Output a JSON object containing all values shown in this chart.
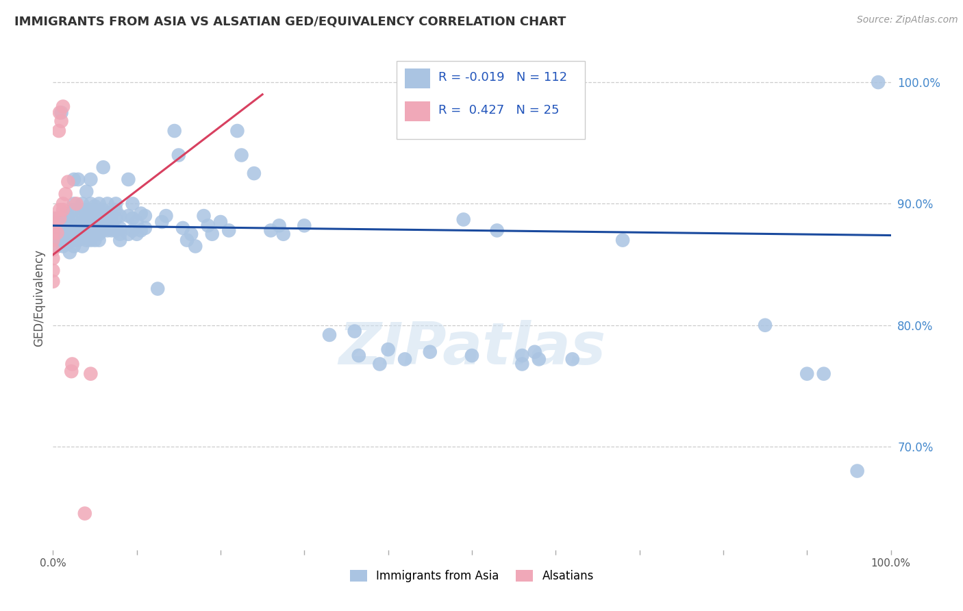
{
  "title": "IMMIGRANTS FROM ASIA VS ALSATIAN GED/EQUIVALENCY CORRELATION CHART",
  "source_text": "Source: ZipAtlas.com",
  "ylabel": "GED/Equivalency",
  "xlim": [
    0.0,
    1.0
  ],
  "ylim": [
    0.615,
    1.03
  ],
  "x_tick_pos": [
    0.0,
    0.1,
    0.2,
    0.3,
    0.4,
    0.5,
    0.6,
    0.7,
    0.8,
    0.9,
    1.0
  ],
  "x_tick_labels": [
    "0.0%",
    "",
    "",
    "",
    "",
    "",
    "",
    "",
    "",
    "",
    "100.0%"
  ],
  "y_tick_positions": [
    0.7,
    0.8,
    0.9,
    1.0
  ],
  "y_tick_labels": [
    "70.0%",
    "80.0%",
    "90.0%",
    "100.0%"
  ],
  "legend_blue_r": "-0.019",
  "legend_blue_n": "112",
  "legend_pink_r": "0.427",
  "legend_pink_n": "25",
  "legend_label_blue": "Immigrants from Asia",
  "legend_label_pink": "Alsatians",
  "blue_color": "#aac4e2",
  "blue_line_color": "#1a4a9e",
  "pink_color": "#f0a8b8",
  "pink_line_color": "#d84060",
  "watermark": "ZIPatlas",
  "blue_points": [
    [
      0.005,
      0.88
    ],
    [
      0.005,
      0.872
    ],
    [
      0.005,
      0.865
    ],
    [
      0.005,
      0.875
    ],
    [
      0.005,
      0.882
    ],
    [
      0.005,
      0.888
    ],
    [
      0.01,
      0.975
    ],
    [
      0.012,
      0.878
    ],
    [
      0.012,
      0.87
    ],
    [
      0.012,
      0.865
    ],
    [
      0.015,
      0.882
    ],
    [
      0.015,
      0.875
    ],
    [
      0.015,
      0.87
    ],
    [
      0.015,
      0.885
    ],
    [
      0.015,
      0.892
    ],
    [
      0.018,
      0.878
    ],
    [
      0.018,
      0.872
    ],
    [
      0.018,
      0.868
    ],
    [
      0.018,
      0.89
    ],
    [
      0.018,
      0.882
    ],
    [
      0.02,
      0.875
    ],
    [
      0.02,
      0.86
    ],
    [
      0.025,
      0.92
    ],
    [
      0.025,
      0.878
    ],
    [
      0.025,
      0.87
    ],
    [
      0.025,
      0.885
    ],
    [
      0.025,
      0.865
    ],
    [
      0.025,
      0.895
    ],
    [
      0.025,
      0.9
    ],
    [
      0.028,
      0.882
    ],
    [
      0.03,
      0.875
    ],
    [
      0.03,
      0.87
    ],
    [
      0.03,
      0.89
    ],
    [
      0.03,
      0.88
    ],
    [
      0.03,
      0.92
    ],
    [
      0.035,
      0.885
    ],
    [
      0.035,
      0.878
    ],
    [
      0.035,
      0.892
    ],
    [
      0.035,
      0.872
    ],
    [
      0.035,
      0.9
    ],
    [
      0.035,
      0.865
    ],
    [
      0.04,
      0.89
    ],
    [
      0.04,
      0.88
    ],
    [
      0.04,
      0.875
    ],
    [
      0.04,
      0.885
    ],
    [
      0.04,
      0.87
    ],
    [
      0.04,
      0.91
    ],
    [
      0.04,
      0.895
    ],
    [
      0.045,
      0.895
    ],
    [
      0.045,
      0.882
    ],
    [
      0.045,
      0.87
    ],
    [
      0.045,
      0.888
    ],
    [
      0.045,
      0.878
    ],
    [
      0.045,
      0.9
    ],
    [
      0.045,
      0.92
    ],
    [
      0.05,
      0.892
    ],
    [
      0.05,
      0.878
    ],
    [
      0.05,
      0.885
    ],
    [
      0.05,
      0.87
    ],
    [
      0.05,
      0.898
    ],
    [
      0.055,
      0.89
    ],
    [
      0.055,
      0.88
    ],
    [
      0.055,
      0.875
    ],
    [
      0.055,
      0.87
    ],
    [
      0.055,
      0.9
    ],
    [
      0.06,
      0.93
    ],
    [
      0.06,
      0.888
    ],
    [
      0.06,
      0.878
    ],
    [
      0.06,
      0.895
    ],
    [
      0.06,
      0.882
    ],
    [
      0.065,
      0.892
    ],
    [
      0.065,
      0.878
    ],
    [
      0.065,
      0.885
    ],
    [
      0.065,
      0.9
    ],
    [
      0.07,
      0.89
    ],
    [
      0.07,
      0.88
    ],
    [
      0.07,
      0.878
    ],
    [
      0.07,
      0.885
    ],
    [
      0.075,
      0.888
    ],
    [
      0.075,
      0.878
    ],
    [
      0.075,
      0.895
    ],
    [
      0.075,
      0.9
    ],
    [
      0.08,
      0.89
    ],
    [
      0.08,
      0.88
    ],
    [
      0.08,
      0.875
    ],
    [
      0.08,
      0.87
    ],
    [
      0.09,
      0.92
    ],
    [
      0.09,
      0.89
    ],
    [
      0.09,
      0.875
    ],
    [
      0.095,
      0.9
    ],
    [
      0.095,
      0.888
    ],
    [
      0.095,
      0.878
    ],
    [
      0.1,
      0.885
    ],
    [
      0.1,
      0.875
    ],
    [
      0.105,
      0.892
    ],
    [
      0.105,
      0.878
    ],
    [
      0.11,
      0.89
    ],
    [
      0.11,
      0.88
    ],
    [
      0.125,
      0.83
    ],
    [
      0.13,
      0.885
    ],
    [
      0.135,
      0.89
    ],
    [
      0.145,
      0.96
    ],
    [
      0.15,
      0.94
    ],
    [
      0.155,
      0.88
    ],
    [
      0.16,
      0.87
    ],
    [
      0.165,
      0.875
    ],
    [
      0.17,
      0.865
    ],
    [
      0.18,
      0.89
    ],
    [
      0.185,
      0.882
    ],
    [
      0.19,
      0.875
    ],
    [
      0.2,
      0.885
    ],
    [
      0.21,
      0.878
    ],
    [
      0.22,
      0.96
    ],
    [
      0.225,
      0.94
    ],
    [
      0.24,
      0.925
    ],
    [
      0.26,
      0.878
    ],
    [
      0.27,
      0.882
    ],
    [
      0.275,
      0.875
    ],
    [
      0.3,
      0.882
    ],
    [
      0.33,
      0.792
    ],
    [
      0.36,
      0.795
    ],
    [
      0.365,
      0.775
    ],
    [
      0.39,
      0.768
    ],
    [
      0.4,
      0.78
    ],
    [
      0.42,
      0.772
    ],
    [
      0.45,
      0.778
    ],
    [
      0.49,
      0.887
    ],
    [
      0.5,
      0.775
    ],
    [
      0.53,
      0.878
    ],
    [
      0.56,
      0.775
    ],
    [
      0.56,
      0.768
    ],
    [
      0.575,
      0.778
    ],
    [
      0.58,
      0.772
    ],
    [
      0.62,
      0.772
    ],
    [
      0.68,
      0.87
    ],
    [
      0.85,
      0.8
    ],
    [
      0.9,
      0.76
    ],
    [
      0.92,
      0.76
    ],
    [
      0.96,
      0.68
    ],
    [
      0.985,
      1.0
    ]
  ],
  "pink_points": [
    [
      0.0,
      0.888
    ],
    [
      0.0,
      0.882
    ],
    [
      0.0,
      0.876
    ],
    [
      0.0,
      0.87
    ],
    [
      0.0,
      0.862
    ],
    [
      0.0,
      0.855
    ],
    [
      0.0,
      0.845
    ],
    [
      0.0,
      0.836
    ],
    [
      0.005,
      0.876
    ],
    [
      0.007,
      0.96
    ],
    [
      0.008,
      0.975
    ],
    [
      0.008,
      0.888
    ],
    [
      0.008,
      0.895
    ],
    [
      0.01,
      0.968
    ],
    [
      0.012,
      0.98
    ],
    [
      0.012,
      0.895
    ],
    [
      0.012,
      0.9
    ],
    [
      0.015,
      0.908
    ],
    [
      0.018,
      0.918
    ],
    [
      0.022,
      0.762
    ],
    [
      0.023,
      0.768
    ],
    [
      0.028,
      0.9
    ],
    [
      0.038,
      0.645
    ],
    [
      0.045,
      0.76
    ]
  ],
  "blue_trend_x": [
    0.0,
    1.0
  ],
  "blue_trend_y_start": 0.882,
  "blue_trend_y_end": 0.874,
  "pink_trend_x": [
    0.0,
    0.25
  ],
  "pink_trend_y_start": 0.858,
  "pink_trend_y_end": 0.99
}
